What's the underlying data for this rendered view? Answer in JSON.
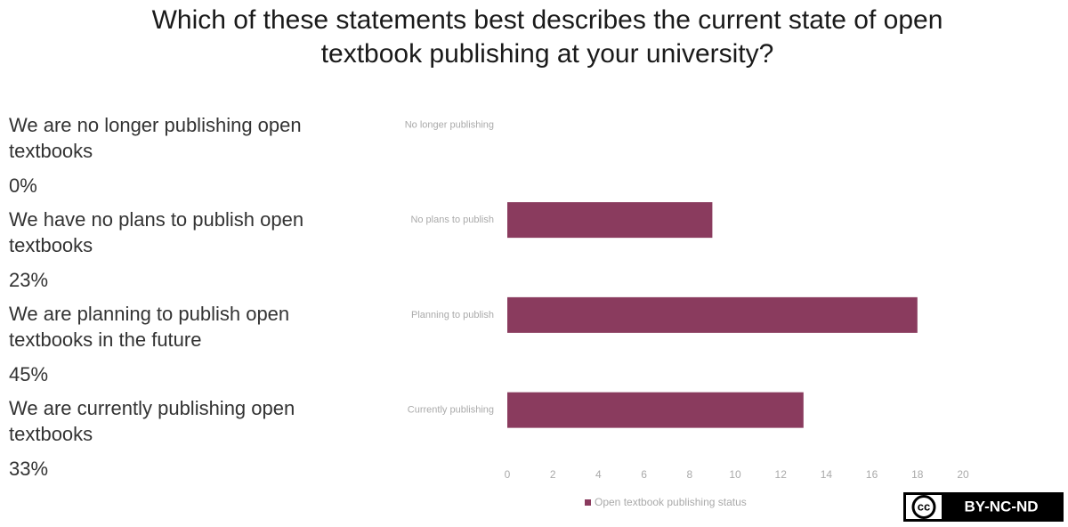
{
  "title": "Which of these statements best describes the current state of open textbook publishing at your university?",
  "statements": [
    {
      "text": "We are no longer publishing open textbooks",
      "percent": "0%"
    },
    {
      "text": "We have no plans to publish open textbooks",
      "percent": "23%"
    },
    {
      "text": "We are planning to publish open textbooks in the future",
      "percent": "45%"
    },
    {
      "text": "We are currently publishing open textbooks",
      "percent": "33%"
    }
  ],
  "chart_data": {
    "type": "hbar",
    "categories": [
      "No longer publishing",
      "No plans to publish",
      "Planning to publish",
      "Currently publishing"
    ],
    "series": [
      {
        "name": "Open textbook publishing status",
        "color": "#8a3b5e",
        "values": [
          0,
          9,
          18,
          13
        ]
      }
    ],
    "xlim": [
      0,
      20
    ],
    "xticks": [
      0,
      2,
      4,
      6,
      8,
      10,
      12,
      14,
      16,
      18,
      20
    ],
    "grid": false,
    "legend": "bottom"
  },
  "license": {
    "icon": "cc",
    "text": "BY-NC-ND"
  }
}
